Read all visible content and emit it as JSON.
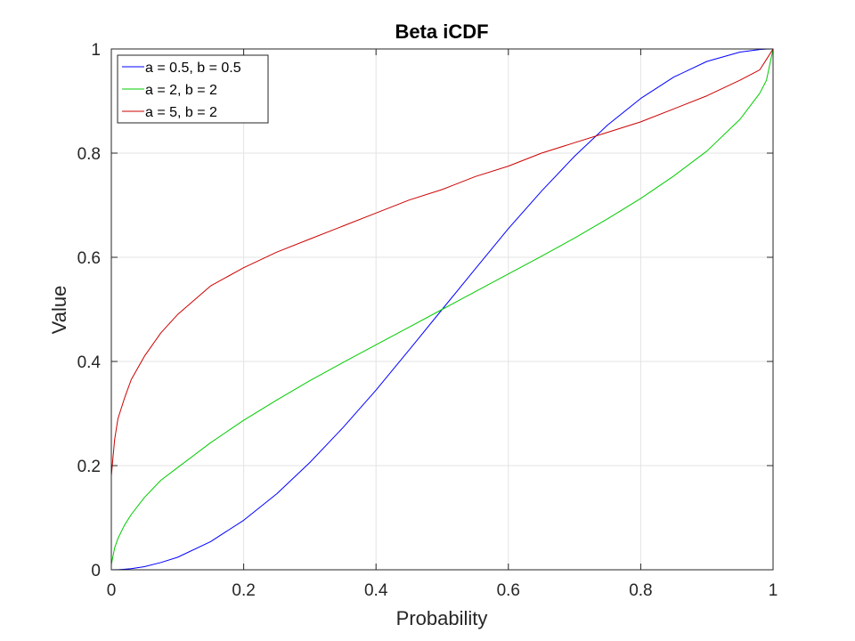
{
  "chart_data": {
    "type": "line",
    "title": "Beta iCDF",
    "xlabel": "Probability",
    "ylabel": "Value",
    "xlim": [
      0,
      1
    ],
    "ylim": [
      0,
      1
    ],
    "xticks": [
      0,
      0.2,
      0.4,
      0.6,
      0.8,
      1
    ],
    "yticks": [
      0,
      0.2,
      0.4,
      0.6,
      0.8,
      1
    ],
    "xtick_labels": [
      "0",
      "0.2",
      "0.4",
      "0.6",
      "0.8",
      "1"
    ],
    "ytick_labels": [
      "0",
      "0.2",
      "0.4",
      "0.6",
      "0.8",
      "1"
    ],
    "grid": true,
    "legend_position": "top-left",
    "x": [
      0,
      0.005,
      0.01,
      0.02,
      0.03,
      0.05,
      0.075,
      0.1,
      0.15,
      0.2,
      0.25,
      0.3,
      0.35,
      0.4,
      0.45,
      0.5,
      0.55,
      0.6,
      0.65,
      0.7,
      0.75,
      0.8,
      0.85,
      0.9,
      0.95,
      0.98,
      0.99,
      1
    ],
    "series": [
      {
        "name": "a = 0.5, b = 0.5",
        "color": "#0000ff",
        "values": [
          0,
          0.0001,
          0.0002,
          0.001,
          0.002,
          0.006,
          0.014,
          0.024,
          0.054,
          0.095,
          0.146,
          0.206,
          0.273,
          0.345,
          0.422,
          0.5,
          0.578,
          0.655,
          0.727,
          0.794,
          0.854,
          0.905,
          0.946,
          0.976,
          0.994,
          0.999,
          0.9998,
          1
        ]
      },
      {
        "name": "a = 2, b = 2",
        "color": "#00cc00",
        "values": [
          0.01,
          0.042,
          0.06,
          0.086,
          0.106,
          0.139,
          0.172,
          0.196,
          0.244,
          0.287,
          0.326,
          0.363,
          0.398,
          0.432,
          0.466,
          0.5,
          0.534,
          0.568,
          0.602,
          0.637,
          0.674,
          0.713,
          0.756,
          0.804,
          0.865,
          0.915,
          0.94,
          1
        ]
      },
      {
        "name": "a = 5, b = 2",
        "color": "#cc0000",
        "values": [
          0.18,
          0.25,
          0.29,
          0.33,
          0.365,
          0.41,
          0.455,
          0.49,
          0.545,
          0.58,
          0.61,
          0.635,
          0.66,
          0.685,
          0.71,
          0.73,
          0.755,
          0.775,
          0.8,
          0.82,
          0.84,
          0.86,
          0.885,
          0.91,
          0.94,
          0.96,
          0.98,
          1
        ]
      }
    ]
  }
}
